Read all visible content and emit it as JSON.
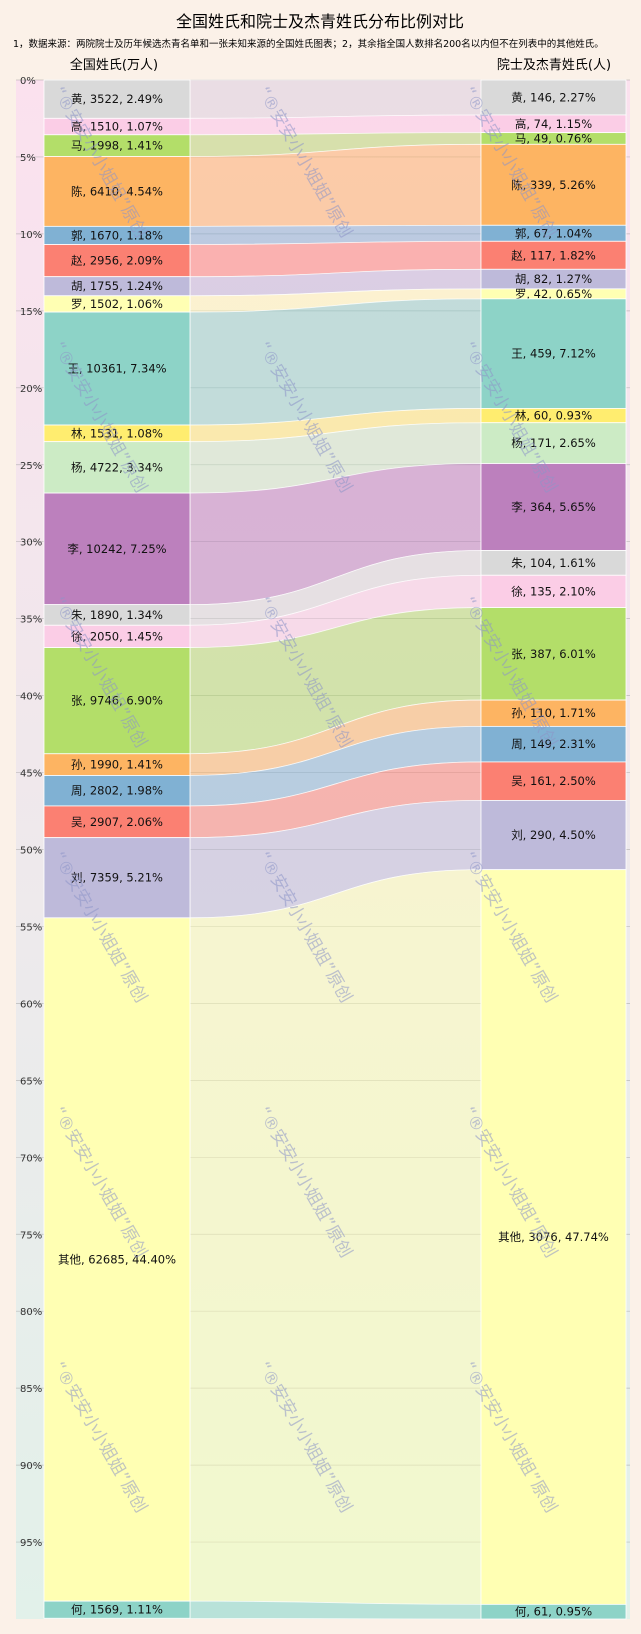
{
  "title": "全国姓氏和院士及杰青姓氏分布比例对比",
  "subtitle": "1，数据来源：两院院士及历年候选杰青名单和一张未知来源的全国姓氏图表；2，其余指全国人数排名200名以内但不在列表中的其他姓氏。",
  "watermark": "“®安安小小姐姐”原创",
  "colors": {
    "page_bg": "#fbf1e8",
    "plot_bg_top": "#fbe1ee",
    "plot_bg_bottom": "#e2f1ea",
    "gridline": "#9a9a9a"
  },
  "chart_data": {
    "type": "sankey",
    "y_unit": "%",
    "ylim": [
      0,
      100
    ],
    "y_ticks": [
      0,
      5,
      10,
      15,
      20,
      25,
      30,
      35,
      40,
      45,
      50,
      55,
      60,
      65,
      70,
      75,
      80,
      85,
      90,
      95
    ],
    "left_header": "全国姓氏(万人)",
    "right_header": "院士及杰青姓氏(人)",
    "left": [
      {
        "name": "黄",
        "value": 3522,
        "pct": 2.49,
        "label": "黄, 3522, 2.49%",
        "color": "#d9d9d9"
      },
      {
        "name": "高",
        "value": 1510,
        "pct": 1.07,
        "label": "高, 1510, 1.07%",
        "color": "#fbcde6"
      },
      {
        "name": "马",
        "value": 1998,
        "pct": 1.41,
        "label": "马, 1998, 1.41%",
        "color": "#b3de69"
      },
      {
        "name": "陈",
        "value": 6410,
        "pct": 4.54,
        "label": "陈, 6410, 4.54%",
        "color": "#fdb462"
      },
      {
        "name": "郭",
        "value": 1670,
        "pct": 1.18,
        "label": "郭, 1670, 1.18%",
        "color": "#80b1d3"
      },
      {
        "name": "赵",
        "value": 2956,
        "pct": 2.09,
        "label": "赵, 2956, 2.09%",
        "color": "#fb8072"
      },
      {
        "name": "胡",
        "value": 1755,
        "pct": 1.24,
        "label": "胡, 1755, 1.24%",
        "color": "#bebada"
      },
      {
        "name": "罗",
        "value": 1502,
        "pct": 1.06,
        "label": "罗, 1502, 1.06%",
        "color": "#ffffb3"
      },
      {
        "name": "王",
        "value": 10361,
        "pct": 7.34,
        "label": "王, 10361, 7.34%",
        "color": "#8dd3c7"
      },
      {
        "name": "林",
        "value": 1531,
        "pct": 1.08,
        "label": "林, 1531, 1.08%",
        "color": "#ffed6f"
      },
      {
        "name": "杨",
        "value": 4722,
        "pct": 3.34,
        "label": "杨, 4722, 3.34%",
        "color": "#ccebc5"
      },
      {
        "name": "李",
        "value": 10242,
        "pct": 7.25,
        "label": "李, 10242, 7.25%",
        "color": "#bc80bd"
      },
      {
        "name": "朱",
        "value": 1890,
        "pct": 1.34,
        "label": "朱, 1890, 1.34%",
        "color": "#d9d9d9"
      },
      {
        "name": "徐",
        "value": 2050,
        "pct": 1.45,
        "label": "徐, 2050, 1.45%",
        "color": "#fbcde6"
      },
      {
        "name": "张",
        "value": 9746,
        "pct": 6.9,
        "label": "张, 9746, 6.90%",
        "color": "#b3de69"
      },
      {
        "name": "孙",
        "value": 1990,
        "pct": 1.41,
        "label": "孙, 1990, 1.41%",
        "color": "#fdb462"
      },
      {
        "name": "周",
        "value": 2802,
        "pct": 1.98,
        "label": "周, 2802, 1.98%",
        "color": "#80b1d3"
      },
      {
        "name": "吴",
        "value": 2907,
        "pct": 2.06,
        "label": "吴, 2907, 2.06%",
        "color": "#fb8072"
      },
      {
        "name": "刘",
        "value": 7359,
        "pct": 5.21,
        "label": "刘, 7359, 5.21%",
        "color": "#bebada"
      },
      {
        "name": "其他",
        "value": 62685,
        "pct": 44.4,
        "label": "其他, 62685, 44.40%",
        "color": "#ffffb3"
      },
      {
        "name": "何",
        "value": 1569,
        "pct": 1.11,
        "label": "何, 1569, 1.11%",
        "color": "#8dd3c7"
      }
    ],
    "right": [
      {
        "name": "黄",
        "value": 146,
        "pct": 2.27,
        "label": "黄, 146, 2.27%",
        "color": "#d9d9d9"
      },
      {
        "name": "高",
        "value": 74,
        "pct": 1.15,
        "label": "高, 74, 1.15%",
        "color": "#fbcde6"
      },
      {
        "name": "马",
        "value": 49,
        "pct": 0.76,
        "label": "马, 49, 0.76%",
        "color": "#b3de69"
      },
      {
        "name": "陈",
        "value": 339,
        "pct": 5.26,
        "label": "陈, 339, 5.26%",
        "color": "#fdb462"
      },
      {
        "name": "郭",
        "value": 67,
        "pct": 1.04,
        "label": "郭, 67, 1.04%",
        "color": "#80b1d3"
      },
      {
        "name": "赵",
        "value": 117,
        "pct": 1.82,
        "label": "赵, 117, 1.82%",
        "color": "#fb8072"
      },
      {
        "name": "胡",
        "value": 82,
        "pct": 1.27,
        "label": "胡, 82, 1.27%",
        "color": "#bebada"
      },
      {
        "name": "罗",
        "value": 42,
        "pct": 0.65,
        "label": "罗, 42, 0.65%",
        "color": "#ffffb3"
      },
      {
        "name": "王",
        "value": 459,
        "pct": 7.12,
        "label": "王, 459, 7.12%",
        "color": "#8dd3c7"
      },
      {
        "name": "林",
        "value": 60,
        "pct": 0.93,
        "label": "林, 60, 0.93%",
        "color": "#ffed6f"
      },
      {
        "name": "杨",
        "value": 171,
        "pct": 2.65,
        "label": "杨, 171, 2.65%",
        "color": "#ccebc5"
      },
      {
        "name": "李",
        "value": 364,
        "pct": 5.65,
        "label": "李, 364, 5.65%",
        "color": "#bc80bd"
      },
      {
        "name": "朱",
        "value": 104,
        "pct": 1.61,
        "label": "朱, 104, 1.61%",
        "color": "#d9d9d9"
      },
      {
        "name": "徐",
        "value": 135,
        "pct": 2.1,
        "label": "徐, 135, 2.10%",
        "color": "#fbcde6"
      },
      {
        "name": "张",
        "value": 387,
        "pct": 6.01,
        "label": "张, 387, 6.01%",
        "color": "#b3de69"
      },
      {
        "name": "孙",
        "value": 110,
        "pct": 1.71,
        "label": "孙, 110, 1.71%",
        "color": "#fdb462"
      },
      {
        "name": "周",
        "value": 149,
        "pct": 2.31,
        "label": "周, 149, 2.31%",
        "color": "#80b1d3"
      },
      {
        "name": "吴",
        "value": 161,
        "pct": 2.5,
        "label": "吴, 161, 2.50%",
        "color": "#fb8072"
      },
      {
        "name": "刘",
        "value": 290,
        "pct": 4.5,
        "label": "刘, 290, 4.50%",
        "color": "#bebada"
      },
      {
        "name": "其他",
        "value": 3076,
        "pct": 47.74,
        "label": "其他, 3076, 47.74%",
        "color": "#ffffb3"
      },
      {
        "name": "何",
        "value": 61,
        "pct": 0.95,
        "label": "何, 61, 0.95%",
        "color": "#8dd3c7"
      }
    ]
  }
}
